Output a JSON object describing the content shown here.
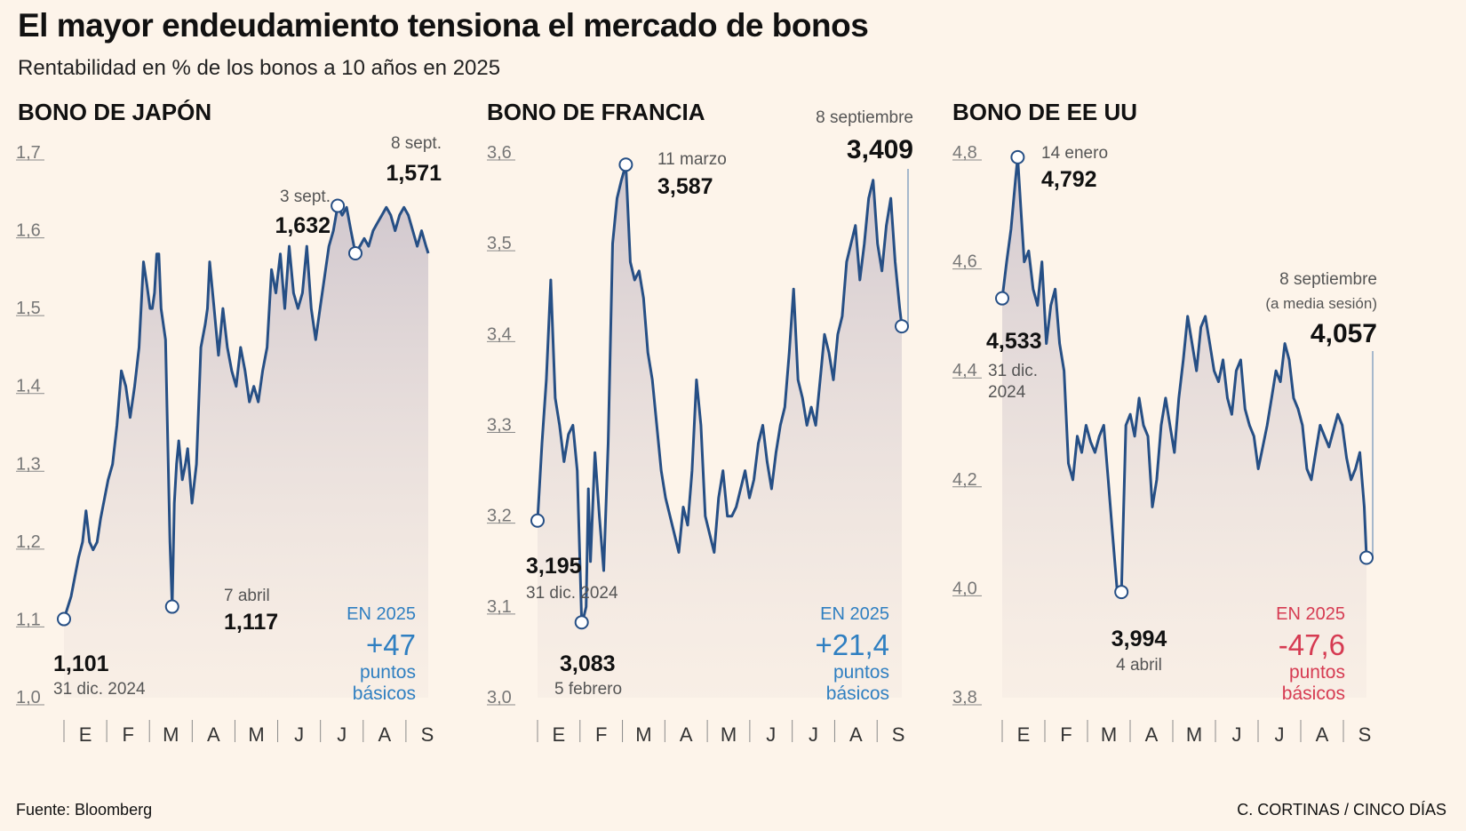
{
  "title": "El mayor endeudamiento tensiona el mercado de bonos",
  "subtitle": "Rentabilidad en % de los bonos a 10 años en 2025",
  "source": "Fuente: Bloomberg",
  "credit": "C. CORTINAS / CINCO DÍAS",
  "colors": {
    "background": "#fdf4ea",
    "line": "#264f85",
    "positive": "#2f7fc1",
    "negative": "#d63b52",
    "axis": "#8a8a8a"
  },
  "chart_data": [
    {
      "type": "area",
      "title": "BONO DE JAPÓN",
      "x_range": [
        0,
        8.25
      ],
      "ylim": [
        1.0,
        1.7
      ],
      "yticks": [
        "1,7",
        "1,6",
        "1,5",
        "1,4",
        "1,3",
        "1,2",
        "1,1",
        "1,0"
      ],
      "ytick_values": [
        1.7,
        1.6,
        1.5,
        1.4,
        1.3,
        1.2,
        1.1,
        1.0
      ],
      "months": [
        "E",
        "F",
        "M",
        "A",
        "M",
        "J",
        "J",
        "A",
        "S"
      ],
      "series": [
        {
          "name": "Rentabilidad bono 10 años Japón",
          "x": [
            0,
            0.16,
            0.33,
            0.42,
            0.5,
            0.58,
            0.66,
            0.75,
            0.83,
            1.0,
            1.1,
            1.2,
            1.3,
            1.4,
            1.5,
            1.6,
            1.7,
            1.8,
            1.88,
            1.95,
            2.0,
            2.05,
            2.1,
            2.15,
            2.2,
            2.3,
            2.4,
            2.45,
            2.5,
            2.55,
            2.6,
            2.68,
            2.75,
            2.8,
            2.9,
            3.0,
            3.1,
            3.2,
            3.25,
            3.3,
            3.4,
            3.5,
            3.6,
            3.7,
            3.8,
            3.9,
            4.0,
            4.1,
            4.2,
            4.3,
            4.4,
            4.5,
            4.6,
            4.7,
            4.8,
            4.9,
            5.0,
            5.1,
            5.2,
            5.3,
            5.4,
            5.5,
            5.6,
            5.7,
            5.8,
            5.9,
            6.0,
            6.1,
            6.2,
            6.3,
            6.4,
            6.5,
            6.6,
            6.7,
            6.8,
            6.9,
            7.0,
            7.1,
            7.2,
            7.3,
            7.4,
            7.5,
            7.6,
            7.7,
            7.8,
            7.9,
            8.0,
            8.1,
            8.2,
            8.25
          ],
          "values": [
            1.101,
            1.13,
            1.18,
            1.2,
            1.24,
            1.2,
            1.19,
            1.2,
            1.23,
            1.28,
            1.3,
            1.35,
            1.42,
            1.4,
            1.36,
            1.4,
            1.45,
            1.56,
            1.53,
            1.5,
            1.5,
            1.52,
            1.57,
            1.57,
            1.5,
            1.46,
            1.2,
            1.117,
            1.25,
            1.3,
            1.33,
            1.28,
            1.3,
            1.32,
            1.25,
            1.3,
            1.45,
            1.48,
            1.5,
            1.56,
            1.5,
            1.44,
            1.5,
            1.45,
            1.42,
            1.4,
            1.45,
            1.42,
            1.38,
            1.4,
            1.38,
            1.42,
            1.45,
            1.55,
            1.52,
            1.57,
            1.5,
            1.58,
            1.52,
            1.5,
            1.52,
            1.58,
            1.5,
            1.46,
            1.5,
            1.54,
            1.58,
            1.6,
            1.632,
            1.62,
            1.63,
            1.6,
            1.571,
            1.58,
            1.59,
            1.58,
            1.6,
            1.61,
            1.62,
            1.63,
            1.62,
            1.6,
            1.62,
            1.63,
            1.62,
            1.6,
            1.58,
            1.6,
            1.58,
            1.571
          ]
        }
      ],
      "annotations": [
        {
          "date": "31 dic. 2024",
          "value": "1,101"
        },
        {
          "date": "7 abril",
          "value": "1,117"
        },
        {
          "date": "3 sept.",
          "value": "1,632"
        },
        {
          "date": "8 sept.",
          "value": "1,571"
        }
      ],
      "change": {
        "label": "EN 2025",
        "value": "+47",
        "unit1": "puntos",
        "unit2": "básicos",
        "sign": "positive"
      }
    },
    {
      "type": "area",
      "title": "BONO DE FRANCIA",
      "x_range": [
        0,
        8.25
      ],
      "ylim": [
        3.0,
        3.6
      ],
      "yticks": [
        "3,6",
        "3,5",
        "3,4",
        "3,3",
        "3,2",
        "3,1",
        "3,0"
      ],
      "ytick_values": [
        3.6,
        3.5,
        3.4,
        3.3,
        3.2,
        3.1,
        3.0
      ],
      "months": [
        "E",
        "F",
        "M",
        "A",
        "M",
        "J",
        "J",
        "A",
        "S"
      ],
      "series": [
        {
          "name": "Rentabilidad bono 10 años Francia",
          "x": [
            0,
            0.1,
            0.2,
            0.3,
            0.4,
            0.5,
            0.6,
            0.7,
            0.8,
            0.9,
            1.0,
            1.05,
            1.1,
            1.15,
            1.2,
            1.3,
            1.4,
            1.5,
            1.6,
            1.7,
            1.8,
            1.9,
            2.0,
            2.1,
            2.2,
            2.3,
            2.4,
            2.5,
            2.6,
            2.7,
            2.8,
            2.9,
            3.0,
            3.1,
            3.2,
            3.3,
            3.4,
            3.5,
            3.6,
            3.7,
            3.8,
            3.9,
            4.0,
            4.1,
            4.2,
            4.3,
            4.4,
            4.5,
            4.6,
            4.7,
            4.8,
            4.9,
            5.0,
            5.1,
            5.2,
            5.3,
            5.4,
            5.5,
            5.6,
            5.7,
            5.8,
            5.9,
            6.0,
            6.1,
            6.2,
            6.3,
            6.4,
            6.5,
            6.6,
            6.7,
            6.8,
            6.9,
            7.0,
            7.1,
            7.2,
            7.3,
            7.4,
            7.5,
            7.6,
            7.7,
            7.8,
            7.9,
            8.0,
            8.1,
            8.2,
            8.25
          ],
          "values": [
            3.195,
            3.28,
            3.35,
            3.46,
            3.33,
            3.3,
            3.26,
            3.29,
            3.3,
            3.25,
            3.083,
            3.09,
            3.1,
            3.23,
            3.15,
            3.27,
            3.2,
            3.14,
            3.28,
            3.5,
            3.55,
            3.57,
            3.587,
            3.48,
            3.46,
            3.47,
            3.44,
            3.38,
            3.35,
            3.3,
            3.25,
            3.22,
            3.2,
            3.18,
            3.16,
            3.21,
            3.19,
            3.25,
            3.35,
            3.3,
            3.2,
            3.18,
            3.16,
            3.22,
            3.25,
            3.2,
            3.2,
            3.21,
            3.23,
            3.25,
            3.22,
            3.24,
            3.28,
            3.3,
            3.26,
            3.23,
            3.27,
            3.3,
            3.32,
            3.38,
            3.45,
            3.35,
            3.33,
            3.3,
            3.32,
            3.3,
            3.35,
            3.4,
            3.38,
            3.35,
            3.4,
            3.42,
            3.48,
            3.5,
            3.52,
            3.46,
            3.5,
            3.55,
            3.57,
            3.5,
            3.47,
            3.52,
            3.55,
            3.48,
            3.43,
            3.409
          ]
        }
      ],
      "annotations": [
        {
          "date": "31 dic. 2024",
          "value": "3,195"
        },
        {
          "date": "5 febrero",
          "value": "3,083"
        },
        {
          "date": "11 marzo",
          "value": "3,587"
        },
        {
          "date": "8 septiembre",
          "value": "3,409"
        }
      ],
      "change": {
        "label": "EN 2025",
        "value": "+21,4",
        "unit1": "puntos",
        "unit2": "básicos",
        "sign": "positive"
      }
    },
    {
      "type": "area",
      "title": "BONO DE EE UU",
      "x_range": [
        0,
        8.25
      ],
      "ylim": [
        3.8,
        4.8
      ],
      "yticks": [
        "4,8",
        "4,6",
        "4,4",
        "4,2",
        "4,0",
        "3,8"
      ],
      "ytick_values": [
        4.8,
        4.6,
        4.4,
        4.2,
        4.0,
        3.8
      ],
      "months": [
        "E",
        "F",
        "M",
        "A",
        "M",
        "J",
        "J",
        "A",
        "S"
      ],
      "series": [
        {
          "name": "Rentabilidad bono 10 años EE UU",
          "x": [
            0,
            0.1,
            0.2,
            0.3,
            0.35,
            0.42,
            0.5,
            0.6,
            0.7,
            0.8,
            0.9,
            1.0,
            1.1,
            1.2,
            1.3,
            1.4,
            1.5,
            1.6,
            1.7,
            1.8,
            1.9,
            2.0,
            2.1,
            2.2,
            2.3,
            2.4,
            2.5,
            2.6,
            2.7,
            2.75,
            2.8,
            2.9,
            3.0,
            3.1,
            3.2,
            3.3,
            3.4,
            3.5,
            3.6,
            3.7,
            3.8,
            3.9,
            4.0,
            4.1,
            4.2,
            4.3,
            4.4,
            4.5,
            4.6,
            4.7,
            4.8,
            4.9,
            5.0,
            5.1,
            5.2,
            5.3,
            5.4,
            5.5,
            5.6,
            5.7,
            5.8,
            5.9,
            6.0,
            6.1,
            6.2,
            6.3,
            6.4,
            6.5,
            6.6,
            6.7,
            6.8,
            6.9,
            7.0,
            7.1,
            7.2,
            7.3,
            7.4,
            7.5,
            7.6,
            7.7,
            7.8,
            7.9,
            8.0,
            8.1,
            8.2,
            8.25
          ],
          "values": [
            4.533,
            4.6,
            4.66,
            4.75,
            4.792,
            4.7,
            4.6,
            4.62,
            4.55,
            4.52,
            4.6,
            4.45,
            4.52,
            4.55,
            4.45,
            4.4,
            4.23,
            4.2,
            4.28,
            4.25,
            4.3,
            4.27,
            4.25,
            4.28,
            4.3,
            4.2,
            4.1,
            4.0,
            3.994,
            4.15,
            4.3,
            4.32,
            4.28,
            4.35,
            4.3,
            4.28,
            4.15,
            4.2,
            4.3,
            4.35,
            4.3,
            4.25,
            4.35,
            4.42,
            4.5,
            4.45,
            4.4,
            4.48,
            4.5,
            4.45,
            4.4,
            4.38,
            4.42,
            4.35,
            4.32,
            4.4,
            4.42,
            4.33,
            4.3,
            4.28,
            4.22,
            4.26,
            4.3,
            4.35,
            4.4,
            4.38,
            4.45,
            4.42,
            4.35,
            4.33,
            4.3,
            4.22,
            4.2,
            4.25,
            4.3,
            4.28,
            4.26,
            4.29,
            4.32,
            4.3,
            4.24,
            4.2,
            4.22,
            4.25,
            4.15,
            4.057
          ]
        }
      ],
      "annotations": [
        {
          "date": "31 dic.",
          "date2": "2024",
          "value": "4,533"
        },
        {
          "date": "14 enero",
          "value": "4,792"
        },
        {
          "date": "4 abril",
          "value": "3,994"
        },
        {
          "date": "8 septiembre",
          "date2": "(a media sesión)",
          "value": "4,057"
        }
      ],
      "change": {
        "label": "EN 2025",
        "value": "-47,6",
        "unit1": "puntos",
        "unit2": "básicos",
        "sign": "negative"
      }
    }
  ]
}
